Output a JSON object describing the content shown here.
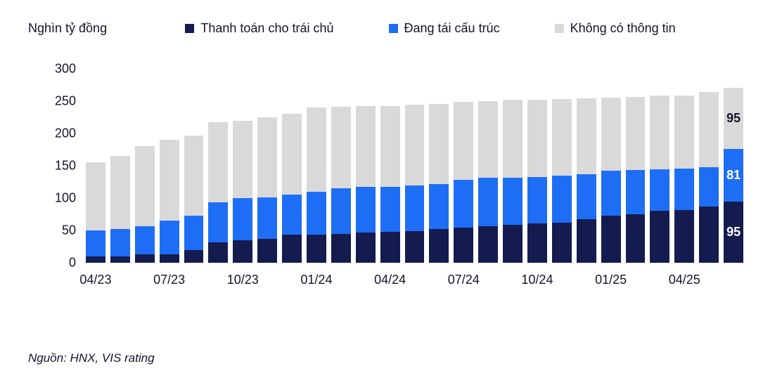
{
  "chart_data": {
    "type": "bar",
    "stacked": true,
    "unit_label": "Nghìn tỷ đồng",
    "title": "",
    "categories": [
      "04/23",
      "05/23",
      "06/23",
      "07/23",
      "08/23",
      "09/23",
      "10/23",
      "11/23",
      "12/23",
      "01/24",
      "02/24",
      "03/24",
      "04/24",
      "05/24",
      "06/24",
      "07/24",
      "08/24",
      "09/24",
      "10/24",
      "11/24",
      "12/24",
      "01/25",
      "02/25",
      "03/25",
      "04/25",
      "05/25",
      "06/25"
    ],
    "x_tick_labels": [
      "04/23",
      "07/23",
      "10/23",
      "01/24",
      "04/24",
      "07/24",
      "10/24",
      "01/25",
      "04/25"
    ],
    "x_tick_every": 3,
    "series": [
      {
        "name": "Thanh toán cho trái chủ",
        "color": "#141b4f",
        "label_color": "#ffffff",
        "values": [
          10,
          10,
          13,
          13,
          20,
          31,
          35,
          37,
          43,
          44,
          45,
          47,
          48,
          49,
          52,
          54,
          57,
          59,
          61,
          62,
          67,
          73,
          75,
          80,
          82,
          87,
          95
        ]
      },
      {
        "name": "Đang tái cấu trúc",
        "color": "#1e6ef5",
        "label_color": "#ffffff",
        "values": [
          40,
          42,
          44,
          52,
          53,
          62,
          65,
          64,
          63,
          66,
          70,
          70,
          69,
          71,
          70,
          74,
          74,
          73,
          72,
          73,
          70,
          69,
          68,
          65,
          64,
          61,
          81
        ]
      },
      {
        "name": "Không có thông tin",
        "color": "#d9d9d9",
        "label_color": "#14142b",
        "values": [
          105,
          113,
          123,
          125,
          124,
          124,
          120,
          124,
          125,
          130,
          126,
          125,
          125,
          125,
          124,
          121,
          119,
          120,
          119,
          118,
          117,
          114,
          114,
          114,
          113,
          116,
          95
        ]
      }
    ],
    "ylim": [
      0,
      300
    ],
    "y_ticks": [
      0,
      50,
      100,
      150,
      200,
      250,
      300
    ],
    "grid": false,
    "legend_position": "top",
    "labeled_bar_index": 26,
    "labeled_bar_values": {
      "dark": 95,
      "blue": 81,
      "gray": 95
    }
  },
  "source_note": "Nguồn: HNX, VIS rating"
}
